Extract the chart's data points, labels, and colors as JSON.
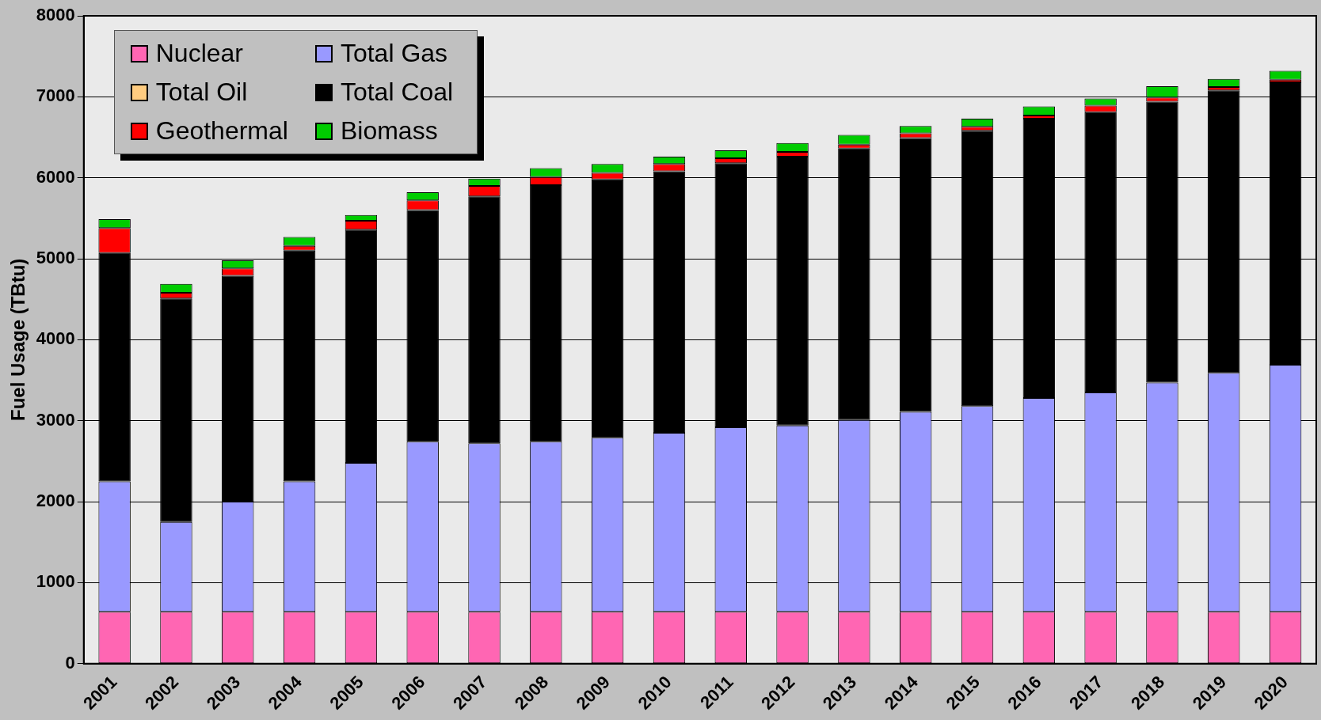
{
  "chart_data": {
    "type": "bar",
    "stacked": true,
    "ylabel": "Fuel Usage (TBtu)",
    "categories": [
      "2001",
      "2002",
      "2003",
      "2004",
      "2005",
      "2006",
      "2007",
      "2008",
      "2009",
      "2010",
      "2011",
      "2012",
      "2013",
      "2014",
      "2015",
      "2016",
      "2017",
      "2018",
      "2019",
      "2020"
    ],
    "ylim": [
      0,
      8000
    ],
    "yticks": [
      0,
      1000,
      2000,
      3000,
      4000,
      5000,
      6000,
      7000,
      8000
    ],
    "grid": "y",
    "legend": "top left",
    "series": [
      {
        "name": "Nuclear",
        "color": "#ff66b3",
        "values": [
          640,
          640,
          640,
          640,
          640,
          640,
          640,
          640,
          640,
          640,
          640,
          640,
          640,
          640,
          640,
          640,
          640,
          640,
          640,
          640
        ]
      },
      {
        "name": "Total Gas",
        "color": "#9999ff",
        "values": [
          1610,
          1110,
          1360,
          1610,
          1840,
          2100,
          2080,
          2100,
          2150,
          2210,
          2280,
          2300,
          2370,
          2470,
          2540,
          2640,
          2710,
          2830,
          2950,
          3050
        ]
      },
      {
        "name": "Total Oil",
        "color": "#ffcc80",
        "values": [
          0,
          0,
          0,
          0,
          0,
          0,
          0,
          0,
          0,
          0,
          0,
          0,
          0,
          0,
          0,
          0,
          0,
          0,
          0,
          0
        ]
      },
      {
        "name": "Total Coal",
        "color": "#000000",
        "values": [
          2820,
          2760,
          2790,
          2850,
          2880,
          2860,
          3050,
          3170,
          3190,
          3230,
          3260,
          3320,
          3350,
          3380,
          3400,
          3450,
          3460,
          3470,
          3490,
          3490
        ]
      },
      {
        "name": "Geothermal",
        "color": "#ff0000",
        "values": [
          310,
          70,
          90,
          60,
          110,
          120,
          130,
          100,
          80,
          90,
          60,
          60,
          50,
          60,
          50,
          40,
          80,
          50,
          40,
          30
        ]
      },
      {
        "name": "Biomass",
        "color": "#00cc00",
        "values": [
          110,
          110,
          100,
          110,
          70,
          100,
          90,
          110,
          110,
          90,
          100,
          110,
          120,
          90,
          100,
          110,
          90,
          140,
          100,
          110
        ]
      }
    ]
  }
}
